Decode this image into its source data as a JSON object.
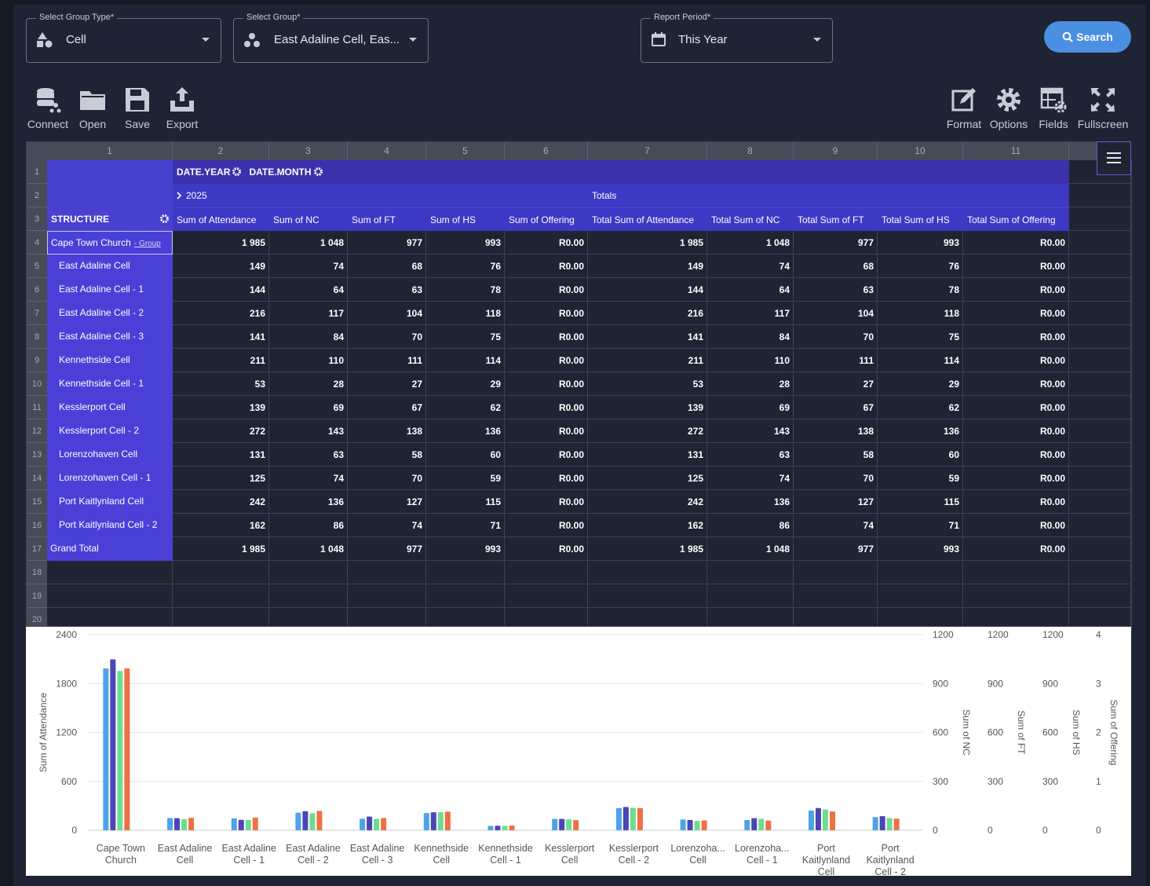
{
  "filters": [
    {
      "label": "Select Group Type*",
      "value": "Cell"
    },
    {
      "label": "Select Group*",
      "value": "East Adaline Cell, Eas..."
    },
    {
      "label": "Report Period*",
      "value": "This Year"
    }
  ],
  "search_button": "Search",
  "toolbar": {
    "left": [
      "Connect",
      "Open",
      "Save",
      "Export"
    ],
    "right": [
      "Format",
      "Options",
      "Fields",
      "Fullscreen"
    ]
  },
  "grid": {
    "column_numbers": [
      1,
      2,
      3,
      4,
      5,
      6,
      7,
      8,
      9,
      10,
      11
    ],
    "row_numbers": [
      1,
      2,
      3,
      4,
      5,
      6,
      7,
      8,
      9,
      10,
      11,
      12,
      13,
      14,
      15,
      16,
      17,
      18,
      19,
      20
    ]
  },
  "pivot": {
    "column_fields": [
      "DATE.YEAR",
      "DATE.MONTH"
    ],
    "year": "2025",
    "totals": "Totals",
    "structure": "STRUCTURE",
    "measures": [
      "Sum of Attendance",
      "Sum of NC",
      "Sum of FT",
      "Sum of HS",
      "Sum of Offering",
      "Total Sum of Attendance",
      "Total Sum of NC",
      "Total Sum of FT",
      "Total Sum of HS",
      "Total Sum of Offering"
    ],
    "rows": [
      {
        "label": "Cape Town Church",
        "tag": "- Group",
        "cells": [
          "1 985",
          "1 048",
          "977",
          "993",
          "R0.00",
          "1 985",
          "1 048",
          "977",
          "993",
          "R0.00"
        ]
      },
      {
        "label": "East Adaline Cell",
        "cells": [
          "149",
          "74",
          "68",
          "76",
          "R0.00",
          "149",
          "74",
          "68",
          "76",
          "R0.00"
        ]
      },
      {
        "label": "East Adaline Cell - 1",
        "cells": [
          "144",
          "64",
          "63",
          "78",
          "R0.00",
          "144",
          "64",
          "63",
          "78",
          "R0.00"
        ]
      },
      {
        "label": "East Adaline Cell - 2",
        "cells": [
          "216",
          "117",
          "104",
          "118",
          "R0.00",
          "216",
          "117",
          "104",
          "118",
          "R0.00"
        ]
      },
      {
        "label": "East Adaline Cell - 3",
        "cells": [
          "141",
          "84",
          "70",
          "75",
          "R0.00",
          "141",
          "84",
          "70",
          "75",
          "R0.00"
        ]
      },
      {
        "label": "Kennethside Cell",
        "cells": [
          "211",
          "110",
          "111",
          "114",
          "R0.00",
          "211",
          "110",
          "111",
          "114",
          "R0.00"
        ]
      },
      {
        "label": "Kennethside Cell - 1",
        "cells": [
          "53",
          "28",
          "27",
          "29",
          "R0.00",
          "53",
          "28",
          "27",
          "29",
          "R0.00"
        ]
      },
      {
        "label": "Kesslerport Cell",
        "cells": [
          "139",
          "69",
          "67",
          "62",
          "R0.00",
          "139",
          "69",
          "67",
          "62",
          "R0.00"
        ]
      },
      {
        "label": "Kesslerport Cell - 2",
        "cells": [
          "272",
          "143",
          "138",
          "136",
          "R0.00",
          "272",
          "143",
          "138",
          "136",
          "R0.00"
        ]
      },
      {
        "label": "Lorenzohaven Cell",
        "cells": [
          "131",
          "63",
          "58",
          "60",
          "R0.00",
          "131",
          "63",
          "58",
          "60",
          "R0.00"
        ]
      },
      {
        "label": "Lorenzohaven Cell - 1",
        "cells": [
          "125",
          "74",
          "70",
          "59",
          "R0.00",
          "125",
          "74",
          "70",
          "59",
          "R0.00"
        ]
      },
      {
        "label": "Port Kaitlynland Cell",
        "cells": [
          "242",
          "136",
          "127",
          "115",
          "R0.00",
          "242",
          "136",
          "127",
          "115",
          "R0.00"
        ]
      },
      {
        "label": "Port Kaitlynland Cell - 2",
        "cells": [
          "162",
          "86",
          "74",
          "71",
          "R0.00",
          "162",
          "86",
          "74",
          "71",
          "R0.00"
        ]
      },
      {
        "label": "Grand Total",
        "cells": [
          "1 985",
          "1 048",
          "977",
          "993",
          "R0.00",
          "1 985",
          "1 048",
          "977",
          "993",
          "R0.00"
        ]
      }
    ]
  },
  "chart_data": {
    "type": "bar",
    "categories": [
      "Cape Town Church",
      "East Adaline Cell",
      "East Adaline Cell - 1",
      "East Adaline Cell - 2",
      "East Adaline Cell - 3",
      "Kennethside Cell",
      "Kennethside Cell - 1",
      "Kesslerport Cell",
      "Kesslerport Cell - 2",
      "Lorenzoha... Cell",
      "Lorenzoha... Cell - 1",
      "Port Kaitlynland Cell",
      "Port Kaitlynland Cell - 2"
    ],
    "series": [
      {
        "name": "Sum of Attendance",
        "color": "#4da3ea",
        "axis": "y",
        "values": [
          1985,
          149,
          144,
          216,
          141,
          211,
          53,
          139,
          272,
          131,
          125,
          242,
          162
        ]
      },
      {
        "name": "Sum of NC",
        "color": "#4a46b6",
        "axis": "y2",
        "values": [
          1048,
          74,
          64,
          117,
          84,
          110,
          28,
          69,
          143,
          63,
          74,
          136,
          86
        ]
      },
      {
        "name": "Sum of FT",
        "color": "#6fdb8f",
        "axis": "y3",
        "values": [
          977,
          68,
          63,
          104,
          70,
          111,
          27,
          67,
          138,
          58,
          70,
          127,
          74
        ]
      },
      {
        "name": "Sum of HS",
        "color": "#ee7045",
        "axis": "y4",
        "values": [
          993,
          76,
          78,
          118,
          75,
          114,
          29,
          62,
          136,
          60,
          59,
          115,
          71
        ]
      },
      {
        "name": "Sum of Offering",
        "color": "#f6c445",
        "axis": "y5",
        "values": [
          0,
          0,
          0,
          0,
          0,
          0,
          0,
          0,
          0,
          0,
          0,
          0,
          0
        ]
      }
    ],
    "ylim": [
      0,
      2400
    ],
    "yticks": [
      0,
      600,
      1200,
      1800,
      2400
    ],
    "y2lim": [
      0,
      1200
    ],
    "y2ticks": [
      0,
      300,
      600,
      900,
      1200
    ],
    "y3lim": [
      0,
      1200
    ],
    "y3ticks": [
      0,
      300,
      600,
      900,
      1200
    ],
    "y4lim": [
      0,
      1200
    ],
    "y4ticks": [
      0,
      300,
      600,
      900,
      1200
    ],
    "y5lim": [
      0,
      4
    ],
    "y5ticks": [
      0,
      1,
      2,
      3,
      4
    ],
    "grid": true
  }
}
